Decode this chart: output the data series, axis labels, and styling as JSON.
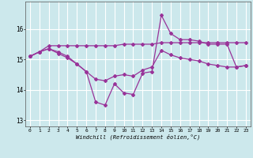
{
  "xlabel": "Windchill (Refroidissement éolien,°C)",
  "background_color": "#cce8ec",
  "grid_color": "#ffffff",
  "line_color": "#993399",
  "ylim": [
    12.8,
    16.9
  ],
  "yticks": [
    13,
    14,
    15,
    16
  ],
  "xlim": [
    -0.5,
    23.5
  ],
  "xticks": [
    0,
    1,
    2,
    3,
    4,
    5,
    6,
    7,
    8,
    9,
    10,
    11,
    12,
    13,
    14,
    15,
    16,
    17,
    18,
    19,
    20,
    21,
    22,
    23
  ],
  "series1_x": [
    0,
    1,
    2,
    3,
    4,
    5,
    6,
    7,
    8,
    9,
    10,
    11,
    12,
    13,
    14,
    15,
    16,
    17,
    18,
    19,
    20,
    21,
    22,
    23
  ],
  "series1_y": [
    15.1,
    15.25,
    15.45,
    15.45,
    15.45,
    15.45,
    15.45,
    15.45,
    15.45,
    15.45,
    15.5,
    15.5,
    15.5,
    15.5,
    15.55,
    15.55,
    15.55,
    15.55,
    15.55,
    15.55,
    15.55,
    15.55,
    15.55,
    15.55
  ],
  "series2_x": [
    0,
    1,
    2,
    3,
    4,
    5,
    6,
    7,
    8,
    9,
    10,
    11,
    12,
    13,
    14,
    15,
    16,
    17,
    18,
    19,
    20,
    21,
    22,
    23
  ],
  "series2_y": [
    15.1,
    15.25,
    15.35,
    15.25,
    15.1,
    14.85,
    14.6,
    13.6,
    13.5,
    14.2,
    13.9,
    13.85,
    14.55,
    14.6,
    16.45,
    15.85,
    15.65,
    15.65,
    15.6,
    15.5,
    15.5,
    15.5,
    14.75,
    14.8
  ],
  "series3_x": [
    0,
    1,
    2,
    3,
    4,
    5,
    6,
    7,
    8,
    9,
    10,
    11,
    12,
    13,
    14,
    15,
    16,
    17,
    18,
    19,
    20,
    21,
    22,
    23
  ],
  "series3_y": [
    15.1,
    15.25,
    15.35,
    15.2,
    15.05,
    14.85,
    14.6,
    14.35,
    14.3,
    14.45,
    14.5,
    14.45,
    14.65,
    14.75,
    15.3,
    15.15,
    15.05,
    15.0,
    14.95,
    14.85,
    14.8,
    14.75,
    14.75,
    14.8
  ]
}
